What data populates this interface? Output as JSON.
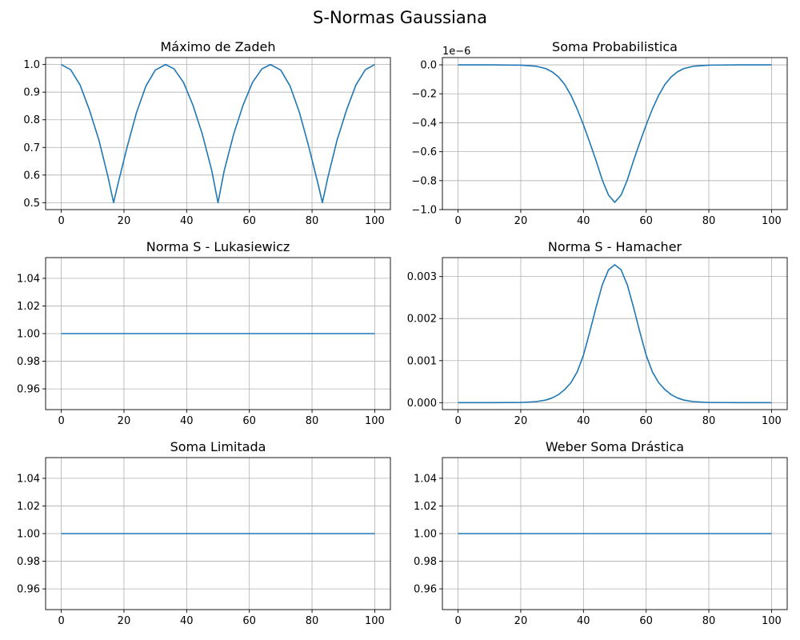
{
  "figure": {
    "title": "S-Normas Gaussiana",
    "line_color": "#1f77b4",
    "grid_color": "#b0b0b0",
    "axis_color": "#000000"
  },
  "chart_data": [
    {
      "type": "line",
      "title": "Máximo de Zadeh",
      "xlabel": "",
      "ylabel": "",
      "xlim": [
        -5,
        105
      ],
      "ylim": [
        0.475,
        1.025
      ],
      "xticks": [
        0,
        20,
        40,
        60,
        80,
        100
      ],
      "xtick_labels": [
        "0",
        "20",
        "40",
        "60",
        "80",
        "100"
      ],
      "yticks": [
        0.5,
        0.6,
        0.7,
        0.8,
        0.9,
        1.0
      ],
      "ytick_labels": [
        "0.5",
        "0.6",
        "0.7",
        "0.8",
        "0.9",
        "1.0"
      ],
      "grid": true,
      "series": [
        {
          "x": [
            0,
            3,
            6,
            9,
            12,
            15,
            16.7,
            18,
            21,
            24,
            27,
            30,
            33.3,
            36,
            39,
            42,
            45,
            48,
            50,
            52,
            55,
            58,
            61,
            64,
            66.7,
            70,
            73,
            76,
            79,
            82,
            83.3,
            85,
            88,
            91,
            94,
            97,
            100
          ],
          "y": [
            1.0,
            0.981,
            0.926,
            0.835,
            0.727,
            0.589,
            0.5,
            0.564,
            0.701,
            0.826,
            0.922,
            0.98,
            1.0,
            0.984,
            0.935,
            0.853,
            0.748,
            0.617,
            0.5,
            0.617,
            0.748,
            0.853,
            0.935,
            0.984,
            1.0,
            0.98,
            0.922,
            0.826,
            0.701,
            0.564,
            0.5,
            0.589,
            0.727,
            0.835,
            0.926,
            0.981,
            1.0
          ]
        }
      ]
    },
    {
      "type": "line",
      "title": "Soma Probabilistica",
      "xlabel": "",
      "ylabel": "",
      "offset_label": "1e−6",
      "xlim": [
        -5,
        105
      ],
      "ylim": [
        -1.0,
        0.05
      ],
      "xticks": [
        0,
        20,
        40,
        60,
        80,
        100
      ],
      "xtick_labels": [
        "0",
        "20",
        "40",
        "60",
        "80",
        "100"
      ],
      "yticks": [
        -1.0,
        -0.8,
        -0.6,
        -0.4,
        -0.2,
        0.0
      ],
      "ytick_labels": [
        "−1.0",
        "−0.8",
        "−0.6",
        "−0.4",
        "−0.2",
        "0.0"
      ],
      "grid": true,
      "series": [
        {
          "x": [
            0,
            10,
            20,
            25,
            28,
            30,
            32,
            34,
            36,
            38,
            40,
            42,
            44,
            46,
            48,
            50,
            52,
            54,
            56,
            58,
            60,
            62,
            64,
            66,
            68,
            70,
            72,
            75,
            80,
            90,
            100
          ],
          "y": [
            0.0,
            0.0,
            -0.002,
            -0.01,
            -0.026,
            -0.048,
            -0.083,
            -0.135,
            -0.21,
            -0.305,
            -0.415,
            -0.535,
            -0.66,
            -0.795,
            -0.9,
            -0.95,
            -0.9,
            -0.795,
            -0.66,
            -0.535,
            -0.415,
            -0.305,
            -0.21,
            -0.135,
            -0.083,
            -0.048,
            -0.026,
            -0.01,
            -0.002,
            0.0,
            0.0
          ]
        }
      ]
    },
    {
      "type": "line",
      "title": "Norma S - Lukasiewicz",
      "xlabel": "",
      "ylabel": "",
      "xlim": [
        -5,
        105
      ],
      "ylim": [
        0.945,
        1.055
      ],
      "xticks": [
        0,
        20,
        40,
        60,
        80,
        100
      ],
      "xtick_labels": [
        "0",
        "20",
        "40",
        "60",
        "80",
        "100"
      ],
      "yticks": [
        0.96,
        0.98,
        1.0,
        1.02,
        1.04
      ],
      "ytick_labels": [
        "0.96",
        "0.98",
        "1.00",
        "1.02",
        "1.04"
      ],
      "grid": true,
      "series": [
        {
          "x": [
            0,
            100
          ],
          "y": [
            1.0,
            1.0
          ]
        }
      ]
    },
    {
      "type": "line",
      "title": "Norma S - Hamacher",
      "xlabel": "",
      "ylabel": "",
      "xlim": [
        -5,
        105
      ],
      "ylim": [
        -0.000165,
        0.00345
      ],
      "xticks": [
        0,
        20,
        40,
        60,
        80,
        100
      ],
      "xtick_labels": [
        "0",
        "20",
        "40",
        "60",
        "80",
        "100"
      ],
      "yticks": [
        0.0,
        0.001,
        0.002,
        0.003
      ],
      "ytick_labels": [
        "0.000",
        "0.001",
        "0.002",
        "0.003"
      ],
      "grid": true,
      "series": [
        {
          "x": [
            0,
            10,
            20,
            25,
            28,
            30,
            32,
            34,
            36,
            38,
            40,
            42,
            44,
            46,
            48,
            50,
            52,
            54,
            56,
            58,
            60,
            62,
            64,
            66,
            68,
            70,
            72,
            75,
            80,
            90,
            100
          ],
          "y": [
            0.0,
            0.0,
            4e-06,
            2.5e-05,
            6.2e-05,
            0.000112,
            0.00019,
            0.00031,
            0.000475,
            0.00073,
            0.00113,
            0.00168,
            0.00226,
            0.0028,
            0.00316,
            0.00328,
            0.00316,
            0.0028,
            0.00226,
            0.00168,
            0.00113,
            0.00073,
            0.000475,
            0.00031,
            0.00019,
            0.000112,
            6.2e-05,
            2.5e-05,
            4e-06,
            0.0,
            0.0
          ]
        }
      ]
    },
    {
      "type": "line",
      "title": "Soma Limitada",
      "xlabel": "",
      "ylabel": "",
      "xlim": [
        -5,
        105
      ],
      "ylim": [
        0.945,
        1.055
      ],
      "xticks": [
        0,
        20,
        40,
        60,
        80,
        100
      ],
      "xtick_labels": [
        "0",
        "20",
        "40",
        "60",
        "80",
        "100"
      ],
      "yticks": [
        0.96,
        0.98,
        1.0,
        1.02,
        1.04
      ],
      "ytick_labels": [
        "0.96",
        "0.98",
        "1.00",
        "1.02",
        "1.04"
      ],
      "grid": true,
      "series": [
        {
          "x": [
            0,
            100
          ],
          "y": [
            1.0,
            1.0
          ]
        }
      ]
    },
    {
      "type": "line",
      "title": "Weber Soma Drástica",
      "xlabel": "",
      "ylabel": "",
      "xlim": [
        -5,
        105
      ],
      "ylim": [
        0.945,
        1.055
      ],
      "xticks": [
        0,
        20,
        40,
        60,
        80,
        100
      ],
      "xtick_labels": [
        "0",
        "20",
        "40",
        "60",
        "80",
        "100"
      ],
      "yticks": [
        0.96,
        0.98,
        1.0,
        1.02,
        1.04
      ],
      "ytick_labels": [
        "0.96",
        "0.98",
        "1.00",
        "1.02",
        "1.04"
      ],
      "grid": true,
      "series": [
        {
          "x": [
            0,
            100
          ],
          "y": [
            1.0,
            1.0
          ]
        }
      ]
    }
  ]
}
